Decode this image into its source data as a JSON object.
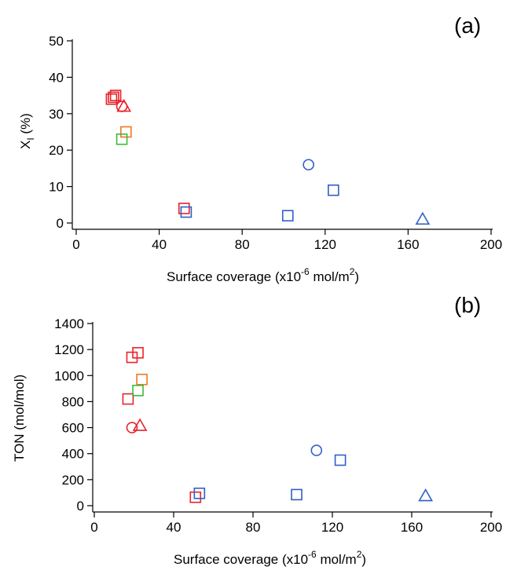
{
  "chart_data": [
    {
      "type": "scatter",
      "panel_label": "(a)",
      "xlabel": "Surface coverage (x10-6 mol/m2)",
      "xlabel_main": "Surface coverage (x10",
      "xlabel_exp": "-6",
      "xlabel_unit": " mol/m",
      "xlabel_unit_exp": "2",
      "xlabel_close": ")",
      "ylabel": "XI (%)",
      "ylabel_main": "X",
      "ylabel_sub": "I",
      "ylabel_rest": " (%)",
      "xlim": [
        0,
        200
      ],
      "ylim": [
        0,
        50
      ],
      "xticks": [
        0,
        40,
        80,
        120,
        160,
        200
      ],
      "yticks": [
        0,
        10,
        20,
        30,
        40,
        50
      ],
      "grid": false,
      "points": [
        {
          "x": 17,
          "y": 34,
          "marker": "square",
          "color": "#e8232a"
        },
        {
          "x": 19,
          "y": 35,
          "marker": "square",
          "color": "#e8232a"
        },
        {
          "x": 18,
          "y": 34.5,
          "marker": "square",
          "color": "#e8232a"
        },
        {
          "x": 22,
          "y": 32,
          "marker": "circle",
          "color": "#e8232a"
        },
        {
          "x": 23,
          "y": 32,
          "marker": "triangle",
          "color": "#e8232a"
        },
        {
          "x": 24,
          "y": 25,
          "marker": "square",
          "color": "#f07820"
        },
        {
          "x": 22,
          "y": 23,
          "marker": "square",
          "color": "#3fb83c"
        },
        {
          "x": 52,
          "y": 4,
          "marker": "square",
          "color": "#e8232a"
        },
        {
          "x": 53,
          "y": 3,
          "marker": "square",
          "color": "#2f5fc8"
        },
        {
          "x": 102,
          "y": 2,
          "marker": "square",
          "color": "#2f5fc8"
        },
        {
          "x": 112,
          "y": 16,
          "marker": "circle",
          "color": "#2f5fc8"
        },
        {
          "x": 124,
          "y": 9,
          "marker": "square",
          "color": "#2f5fc8"
        },
        {
          "x": 167,
          "y": 1,
          "marker": "triangle",
          "color": "#2f5fc8"
        }
      ]
    },
    {
      "type": "scatter",
      "panel_label": "(b)",
      "xlabel": "Surface coverage (x10-6 mol/m2)",
      "xlabel_main": "Surface coverage (x10",
      "xlabel_exp": "-6",
      "xlabel_unit": " mol/m",
      "xlabel_unit_exp": "2",
      "xlabel_close": ")",
      "ylabel": "TON (mol/mol)",
      "xlim": [
        0,
        200
      ],
      "ylim": [
        0,
        1400
      ],
      "xticks": [
        0,
        40,
        80,
        120,
        160,
        200
      ],
      "yticks": [
        0,
        200,
        400,
        600,
        800,
        1000,
        1200,
        1400
      ],
      "grid": false,
      "points": [
        {
          "x": 17,
          "y": 820,
          "marker": "square",
          "color": "#e8232a"
        },
        {
          "x": 19,
          "y": 1140,
          "marker": "square",
          "color": "#e8232a"
        },
        {
          "x": 22,
          "y": 1175,
          "marker": "square",
          "color": "#e8232a"
        },
        {
          "x": 24,
          "y": 970,
          "marker": "square",
          "color": "#f07820"
        },
        {
          "x": 22,
          "y": 885,
          "marker": "square",
          "color": "#3fb83c"
        },
        {
          "x": 19,
          "y": 600,
          "marker": "circle",
          "color": "#e8232a"
        },
        {
          "x": 23,
          "y": 615,
          "marker": "triangle",
          "color": "#e8232a"
        },
        {
          "x": 51,
          "y": 65,
          "marker": "square",
          "color": "#e8232a"
        },
        {
          "x": 53,
          "y": 95,
          "marker": "square",
          "color": "#2f5fc8"
        },
        {
          "x": 102,
          "y": 85,
          "marker": "square",
          "color": "#2f5fc8"
        },
        {
          "x": 112,
          "y": 425,
          "marker": "circle",
          "color": "#2f5fc8"
        },
        {
          "x": 124,
          "y": 350,
          "marker": "square",
          "color": "#2f5fc8"
        },
        {
          "x": 167,
          "y": 75,
          "marker": "triangle",
          "color": "#2f5fc8"
        }
      ]
    }
  ]
}
